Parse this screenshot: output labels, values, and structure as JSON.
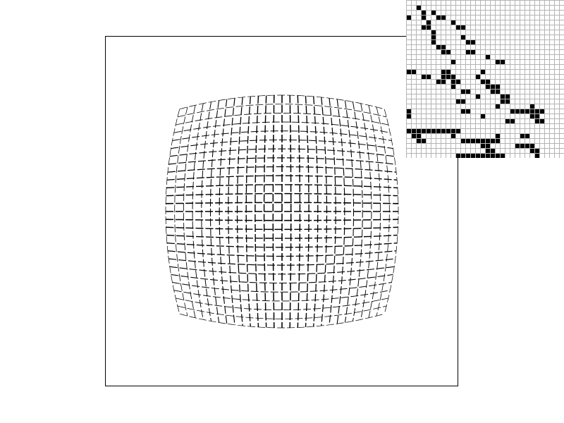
{
  "viewport": {
    "effect": "barrel-distortion",
    "stroke_color": "#000000",
    "background_color": "#ffffff"
  },
  "pixel_grid": {
    "grid_line_color": "#b4b4b4",
    "filled_color": "#000000",
    "background_color": "#ffffff",
    "cells": [
      [
        1,
        2
      ],
      [
        2,
        3
      ],
      [
        2,
        5
      ],
      [
        3,
        0
      ],
      [
        3,
        3
      ],
      [
        4,
        4
      ],
      [
        3,
        6
      ],
      [
        3,
        7
      ],
      [
        4,
        9
      ],
      [
        5,
        3
      ],
      [
        5,
        4
      ],
      [
        5,
        11
      ],
      [
        5,
        10
      ],
      [
        6,
        5
      ],
      [
        7,
        5
      ],
      [
        8,
        5
      ],
      [
        7,
        11
      ],
      [
        8,
        12
      ],
      [
        8,
        13
      ],
      [
        9,
        6
      ],
      [
        9,
        7
      ],
      [
        10,
        7
      ],
      [
        10,
        8
      ],
      [
        10,
        12
      ],
      [
        10,
        13
      ],
      [
        11,
        16
      ],
      [
        12,
        9
      ],
      [
        12,
        18
      ],
      [
        12,
        19
      ],
      [
        14,
        0
      ],
      [
        14,
        1
      ],
      [
        14,
        7
      ],
      [
        14,
        8
      ],
      [
        14,
        15
      ],
      [
        15,
        3
      ],
      [
        15,
        4
      ],
      [
        15,
        7
      ],
      [
        15,
        8
      ],
      [
        15,
        9
      ],
      [
        15,
        14
      ],
      [
        16,
        6
      ],
      [
        16,
        7
      ],
      [
        16,
        9
      ],
      [
        16,
        10
      ],
      [
        16,
        15
      ],
      [
        16,
        16
      ],
      [
        17,
        9
      ],
      [
        17,
        16
      ],
      [
        17,
        17
      ],
      [
        17,
        18
      ],
      [
        18,
        11
      ],
      [
        18,
        12
      ],
      [
        18,
        17
      ],
      [
        18,
        18
      ],
      [
        19,
        14
      ],
      [
        19,
        19
      ],
      [
        19,
        20
      ],
      [
        20,
        10
      ],
      [
        20,
        11
      ],
      [
        20,
        19
      ],
      [
        20,
        20
      ],
      [
        21,
        18
      ],
      [
        21,
        25
      ],
      [
        22,
        0
      ],
      [
        22,
        11
      ],
      [
        22,
        12
      ],
      [
        22,
        21
      ],
      [
        22,
        22
      ],
      [
        22,
        23
      ],
      [
        22,
        24
      ],
      [
        22,
        25
      ],
      [
        22,
        26
      ],
      [
        22,
        27
      ],
      [
        23,
        0
      ],
      [
        23,
        15
      ],
      [
        23,
        25
      ],
      [
        23,
        26
      ],
      [
        24,
        20
      ],
      [
        24,
        21
      ],
      [
        24,
        26
      ],
      [
        24,
        27
      ],
      [
        26,
        0
      ],
      [
        26,
        1
      ],
      [
        26,
        2
      ],
      [
        26,
        3
      ],
      [
        26,
        4
      ],
      [
        26,
        5
      ],
      [
        26,
        6
      ],
      [
        26,
        7
      ],
      [
        26,
        8
      ],
      [
        26,
        9
      ],
      [
        26,
        10
      ],
      [
        27,
        1
      ],
      [
        27,
        2
      ],
      [
        27,
        9
      ],
      [
        27,
        18
      ],
      [
        27,
        23
      ],
      [
        27,
        24
      ],
      [
        28,
        2
      ],
      [
        28,
        3
      ],
      [
        28,
        11
      ],
      [
        28,
        12
      ],
      [
        28,
        13
      ],
      [
        28,
        14
      ],
      [
        28,
        15
      ],
      [
        28,
        16
      ],
      [
        28,
        17
      ],
      [
        28,
        18
      ],
      [
        29,
        15
      ],
      [
        29,
        16
      ],
      [
        29,
        22
      ],
      [
        29,
        23
      ],
      [
        29,
        24
      ],
      [
        29,
        25
      ],
      [
        30,
        16
      ],
      [
        30,
        17
      ],
      [
        30,
        25
      ],
      [
        30,
        26
      ],
      [
        31,
        10
      ],
      [
        31,
        11
      ],
      [
        31,
        12
      ],
      [
        31,
        13
      ],
      [
        31,
        14
      ],
      [
        31,
        15
      ],
      [
        31,
        16
      ],
      [
        31,
        17
      ],
      [
        31,
        18
      ],
      [
        31,
        19
      ],
      [
        31,
        26
      ],
      [
        32,
        5
      ],
      [
        32,
        6
      ],
      [
        32,
        27
      ],
      [
        33,
        14
      ],
      [
        33,
        15
      ],
      [
        33,
        22
      ]
    ]
  }
}
